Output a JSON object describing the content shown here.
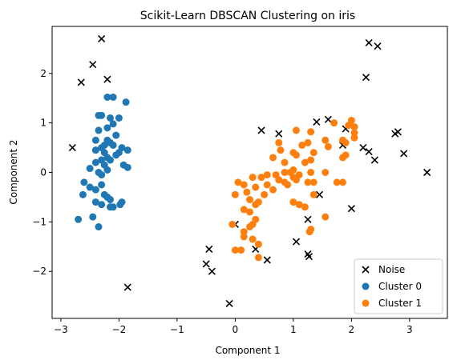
{
  "chart_data": {
    "type": "scatter",
    "title": "Scikit-Learn DBSCAN Clustering on iris",
    "xlabel": "Component 1",
    "ylabel": "Component 2",
    "xlim": [
      -3.15,
      3.65
    ],
    "ylim": [
      -2.95,
      2.95
    ],
    "xticks": [
      -3,
      -2,
      -1,
      0,
      1,
      2,
      3
    ],
    "yticks": [
      -2,
      -1,
      0,
      1,
      2
    ],
    "grid": false,
    "legend_position": "lower-right",
    "series": [
      {
        "name": "Noise",
        "marker": "x",
        "color": "#000000",
        "points": [
          [
            -2.3,
            2.7
          ],
          [
            -2.45,
            2.18
          ],
          [
            -2.65,
            1.82
          ],
          [
            -2.2,
            1.88
          ],
          [
            -2.8,
            0.5
          ],
          [
            -1.85,
            -2.32
          ],
          [
            2.3,
            2.62
          ],
          [
            2.45,
            2.55
          ],
          [
            2.25,
            1.92
          ],
          [
            1.6,
            1.07
          ],
          [
            1.4,
            1.02
          ],
          [
            1.9,
            0.88
          ],
          [
            1.85,
            0.55
          ],
          [
            2.2,
            0.5
          ],
          [
            2.3,
            0.42
          ],
          [
            2.4,
            0.25
          ],
          [
            2.75,
            0.78
          ],
          [
            2.8,
            0.82
          ],
          [
            2.9,
            0.38
          ],
          [
            3.3,
            0.0
          ],
          [
            0.45,
            0.85
          ],
          [
            0.75,
            0.78
          ],
          [
            1.45,
            -0.45
          ],
          [
            2.0,
            -0.73
          ],
          [
            1.25,
            -0.95
          ],
          [
            0.0,
            -1.05
          ],
          [
            1.05,
            -1.4
          ],
          [
            1.25,
            -1.65
          ],
          [
            1.27,
            -1.7
          ],
          [
            0.35,
            -1.55
          ],
          [
            0.55,
            -1.77
          ],
          [
            -0.45,
            -1.55
          ],
          [
            -0.5,
            -1.85
          ],
          [
            -0.4,
            -2.0
          ],
          [
            -0.1,
            -2.65
          ]
        ]
      },
      {
        "name": "Cluster 0",
        "marker": "o",
        "color": "#1f77b4",
        "points": [
          [
            -2.2,
            1.52
          ],
          [
            -2.1,
            1.52
          ],
          [
            -1.88,
            1.42
          ],
          [
            -2.35,
            1.15
          ],
          [
            -2.3,
            1.15
          ],
          [
            -2.15,
            1.1
          ],
          [
            -2.0,
            1.1
          ],
          [
            -2.1,
            0.98
          ],
          [
            -2.2,
            0.9
          ],
          [
            -2.35,
            0.85
          ],
          [
            -2.05,
            0.75
          ],
          [
            -2.4,
            0.65
          ],
          [
            -2.2,
            0.65
          ],
          [
            -2.15,
            0.6
          ],
          [
            -2.1,
            0.55
          ],
          [
            -2.3,
            0.5
          ],
          [
            -2.25,
            0.55
          ],
          [
            -1.95,
            0.5
          ],
          [
            -1.85,
            0.45
          ],
          [
            -2.4,
            0.45
          ],
          [
            -2.25,
            0.4
          ],
          [
            -2.0,
            0.4
          ],
          [
            -2.05,
            0.35
          ],
          [
            -2.2,
            0.3
          ],
          [
            -2.3,
            0.25
          ],
          [
            -2.15,
            0.25
          ],
          [
            -2.4,
            0.2
          ],
          [
            -2.25,
            0.15
          ],
          [
            -1.92,
            0.15
          ],
          [
            -2.5,
            0.08
          ],
          [
            -2.2,
            0.05
          ],
          [
            -1.85,
            0.1
          ],
          [
            -2.35,
            0.0
          ],
          [
            -2.3,
            -0.05
          ],
          [
            -2.6,
            -0.2
          ],
          [
            -2.3,
            -0.25
          ],
          [
            -2.5,
            -0.3
          ],
          [
            -2.4,
            -0.35
          ],
          [
            -2.25,
            -0.45
          ],
          [
            -2.62,
            -0.45
          ],
          [
            -2.2,
            -0.5
          ],
          [
            -2.15,
            -0.55
          ],
          [
            -2.4,
            -0.6
          ],
          [
            -1.95,
            -0.6
          ],
          [
            -2.3,
            -0.65
          ],
          [
            -1.98,
            -0.65
          ],
          [
            -2.1,
            -0.7
          ],
          [
            -2.15,
            -0.7
          ],
          [
            -2.45,
            -0.9
          ],
          [
            -2.7,
            -0.95
          ],
          [
            -2.35,
            -1.1
          ]
        ]
      },
      {
        "name": "Cluster 1",
        "marker": "o",
        "color": "#ff7f0e",
        "points": [
          [
            1.7,
            1.0
          ],
          [
            2.0,
            1.05
          ],
          [
            1.95,
            0.95
          ],
          [
            2.05,
            0.92
          ],
          [
            1.05,
            0.85
          ],
          [
            1.3,
            0.82
          ],
          [
            2.05,
            0.8
          ],
          [
            2.05,
            0.7
          ],
          [
            1.55,
            0.65
          ],
          [
            1.85,
            0.65
          ],
          [
            1.9,
            0.6
          ],
          [
            1.25,
            0.6
          ],
          [
            1.15,
            0.55
          ],
          [
            0.75,
            0.6
          ],
          [
            1.6,
            0.52
          ],
          [
            0.78,
            0.45
          ],
          [
            1.0,
            0.4
          ],
          [
            1.35,
            0.4
          ],
          [
            1.05,
            0.35
          ],
          [
            1.85,
            0.3
          ],
          [
            1.9,
            0.35
          ],
          [
            0.65,
            0.3
          ],
          [
            1.3,
            0.25
          ],
          [
            1.2,
            0.2
          ],
          [
            0.85,
            0.2
          ],
          [
            1.0,
            0.05
          ],
          [
            0.95,
            0.0
          ],
          [
            1.3,
            0.0
          ],
          [
            1.55,
            0.0
          ],
          [
            0.85,
            0.0
          ],
          [
            0.55,
            -0.05
          ],
          [
            1.1,
            -0.05
          ],
          [
            0.7,
            -0.05
          ],
          [
            0.45,
            -0.1
          ],
          [
            0.3,
            -0.1
          ],
          [
            1.0,
            -0.1
          ],
          [
            1.05,
            -0.15
          ],
          [
            0.75,
            -0.15
          ],
          [
            1.25,
            -0.2
          ],
          [
            0.85,
            -0.2
          ],
          [
            0.05,
            -0.2
          ],
          [
            0.15,
            -0.25
          ],
          [
            1.35,
            -0.2
          ],
          [
            1.75,
            -0.2
          ],
          [
            1.85,
            -0.2
          ],
          [
            0.55,
            -0.25
          ],
          [
            0.9,
            -0.25
          ],
          [
            0.35,
            -0.3
          ],
          [
            0.65,
            -0.35
          ],
          [
            0.2,
            -0.4
          ],
          [
            0.5,
            -0.45
          ],
          [
            0.0,
            -0.45
          ],
          [
            1.35,
            -0.45
          ],
          [
            0.25,
            -0.55
          ],
          [
            1.0,
            -0.6
          ],
          [
            1.1,
            -0.65
          ],
          [
            0.4,
            -0.6
          ],
          [
            0.35,
            -0.65
          ],
          [
            0.15,
            -0.75
          ],
          [
            0.25,
            -0.8
          ],
          [
            1.2,
            -0.7
          ],
          [
            1.55,
            -0.9
          ],
          [
            0.35,
            -0.95
          ],
          [
            0.3,
            -1.05
          ],
          [
            -0.05,
            -1.05
          ],
          [
            0.25,
            -1.1
          ],
          [
            0.15,
            -1.2
          ],
          [
            1.28,
            -1.2
          ],
          [
            1.3,
            -1.15
          ],
          [
            0.3,
            -1.35
          ],
          [
            0.15,
            -1.3
          ],
          [
            0.4,
            -1.45
          ],
          [
            0.1,
            -1.57
          ],
          [
            0.0,
            -1.57
          ],
          [
            0.4,
            -1.72
          ]
        ]
      }
    ]
  }
}
